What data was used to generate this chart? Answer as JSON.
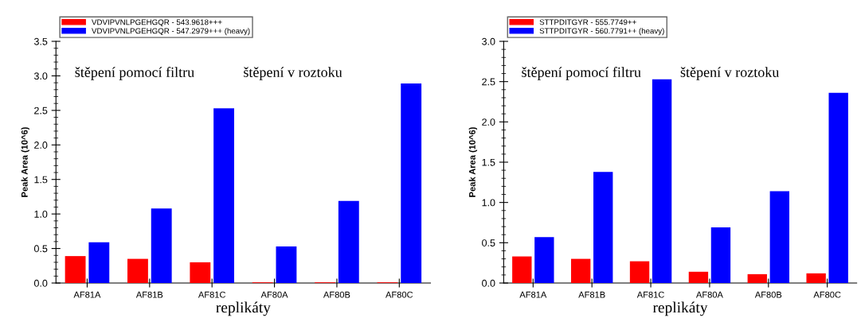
{
  "chart_data": [
    {
      "type": "bar",
      "categories": [
        "AF81A",
        "AF81B",
        "AF81C",
        "AF80A",
        "AF80B",
        "AF80C"
      ],
      "xlabel": "replikáty",
      "ylabel": "Peak Area (10^6)",
      "ylim": [
        0,
        3.5
      ],
      "yticks": [
        {
          "value": 0,
          "label": "0.0"
        },
        0.5,
        {
          "value": 1,
          "label": "1.0"
        },
        1.5,
        {
          "value": 2,
          "label": "2.0"
        },
        2.5,
        {
          "value": 3,
          "label": "3.0"
        },
        3.5
      ],
      "grid": false,
      "legend": "top left",
      "annotations": [
        "štěpení pomocí filtru",
        "štěpení v roztoku"
      ],
      "series": [
        {
          "name": "VDVIPVNLPGEHGQR - 543.9618+++",
          "color": "#ff0000",
          "values": [
            0.39,
            0.35,
            0.3,
            0.01,
            0.01,
            0.01
          ]
        },
        {
          "name": "VDVIPVNLPGEHGQR - 547.2979+++ (heavy)",
          "color": "#0000ff",
          "values": [
            0.59,
            1.08,
            2.53,
            0.53,
            1.19,
            2.89
          ]
        }
      ]
    },
    {
      "type": "bar",
      "categories": [
        "AF81A",
        "AF81B",
        "AF81C",
        "AF80A",
        "AF80B",
        "AF80C"
      ],
      "xlabel": "replikáty",
      "ylabel": "Peak Area (10^6)",
      "ylim": [
        0,
        3.0
      ],
      "yticks": [
        {
          "value": 0,
          "label": "0.0"
        },
        0.5,
        {
          "value": 1,
          "label": "1.0"
        },
        1.5,
        {
          "value": 2,
          "label": "2.0"
        },
        2.5,
        {
          "value": 3,
          "label": "3.0"
        }
      ],
      "grid": false,
      "legend": "top left",
      "annotations": [
        "štěpení pomocí filtru",
        "štěpení v roztoku"
      ],
      "series": [
        {
          "name": "STTPDITGYR - 555.7749++",
          "color": "#ff0000",
          "values": [
            0.33,
            0.3,
            0.27,
            0.14,
            0.11,
            0.12
          ]
        },
        {
          "name": "STTPDITGYR - 560.7791++ (heavy)",
          "color": "#0000ff",
          "values": [
            0.57,
            1.38,
            2.53,
            0.69,
            1.14,
            2.36
          ]
        }
      ]
    }
  ]
}
